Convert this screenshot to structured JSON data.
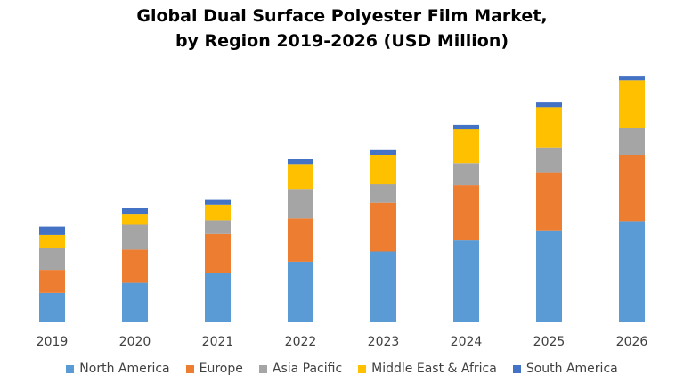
{
  "chart_data": {
    "type": "bar",
    "stacked": true,
    "title": "Global Dual Surface Polyester Film Market,",
    "subtitle": "by Region 2019-2026 (USD Million)",
    "categories": [
      "2019",
      "2020",
      "2021",
      "2022",
      "2023",
      "2024",
      "2025",
      "2026"
    ],
    "series": [
      {
        "name": "North America",
        "color": "#5B9BD5",
        "values": [
          31,
          42,
          53,
          65,
          76,
          88,
          99,
          109
        ]
      },
      {
        "name": "Europe",
        "color": "#ED7D31",
        "values": [
          25,
          36,
          42,
          47,
          53,
          60,
          63,
          72
        ]
      },
      {
        "name": "Asia Pacific",
        "color": "#A5A5A5",
        "values": [
          24,
          27,
          15,
          32,
          20,
          24,
          27,
          29
        ]
      },
      {
        "name": "Middle East & Africa",
        "color": "#FFC000",
        "values": [
          14,
          12,
          17,
          27,
          32,
          37,
          44,
          52
        ]
      },
      {
        "name": "South America",
        "color": "#4472C4",
        "values": [
          9,
          6,
          6,
          6,
          6,
          5,
          5,
          5
        ]
      }
    ],
    "ylim": [
      0,
      270
    ],
    "grid": false,
    "legend": "bottom"
  }
}
